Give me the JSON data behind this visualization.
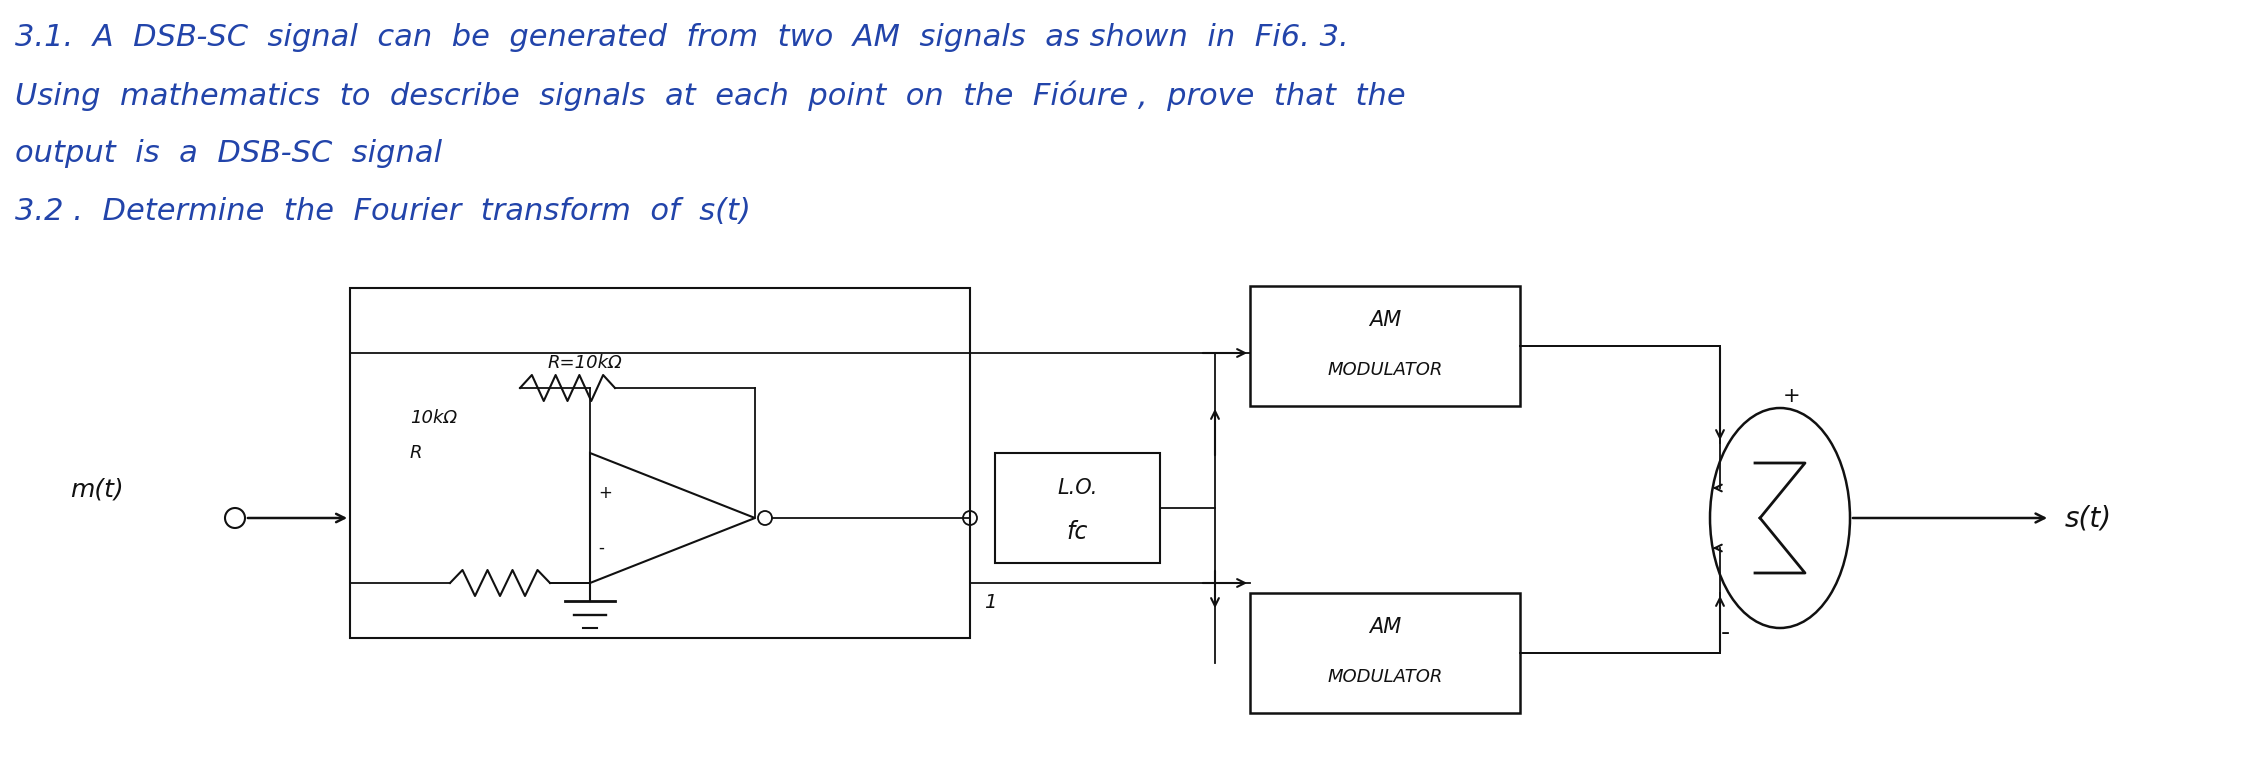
{
  "bg_color": "#ffffff",
  "text_color": "#2244aa",
  "diagram_color": "#111111",
  "title_lines": [
    "3.1.  A  DSB-SC  signal  can  be  generated  from  two  AM  signals  as shown  in  Fi6. 3.",
    "Using  mathematics  to  describe  signals  at  each  point  on  the  Fióure ,  prove  that  the",
    "output  is  a  DSB-SC  signal",
    "3.2 .  Determine  the  Fourier  transform  of  s(t)"
  ],
  "diagram": {
    "input_label": "m(t)",
    "lo_label1": "L.O.",
    "lo_label2": "fc",
    "mod_top_label1": "AM",
    "mod_top_label2": "MODULATOR",
    "mod_bot_label1": "AM",
    "mod_bot_label2": "MODULATOR",
    "output_label": "s(t)",
    "resistor_label1": "R=10kΩ",
    "resistor_label2": "10kΩ",
    "resistor_label3": "R",
    "plus_top": "+",
    "plus_bot": "-",
    "one_label": "1"
  }
}
